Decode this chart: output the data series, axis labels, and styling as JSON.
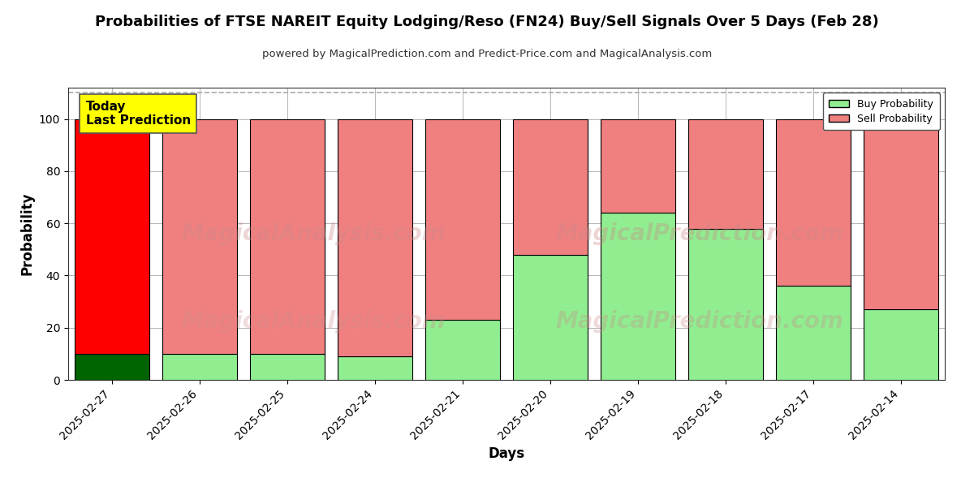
{
  "title": "Probabilities of FTSE NAREIT Equity Lodging/Reso (FN24) Buy/Sell Signals Over 5 Days (Feb 28)",
  "subtitle": "powered by MagicalPrediction.com and Predict-Price.com and MagicalAnalysis.com",
  "xlabel": "Days",
  "ylabel": "Probability",
  "categories": [
    "2025-02-27",
    "2025-02-26",
    "2025-02-25",
    "2025-02-24",
    "2025-02-21",
    "2025-02-20",
    "2025-02-19",
    "2025-02-18",
    "2025-02-17",
    "2025-02-14"
  ],
  "buy_values": [
    10,
    10,
    10,
    9,
    23,
    48,
    64,
    58,
    36,
    27
  ],
  "sell_values": [
    90,
    90,
    90,
    91,
    77,
    52,
    36,
    42,
    64,
    73
  ],
  "buy_color_today": "#006400",
  "sell_color_today": "#FF0000",
  "buy_color_normal": "#90EE90",
  "sell_color_normal": "#F08080",
  "background_color": "#ffffff",
  "grid_color": "#aaaaaa",
  "ylim": [
    0,
    112
  ],
  "yticks": [
    0,
    20,
    40,
    60,
    80,
    100
  ],
  "dashed_line_y": 110,
  "today_label": "Today\nLast Prediction",
  "today_label_bg": "#FFFF00",
  "watermark1": "MagicalAnalysis.com",
  "watermark2": "MagicalPrediction.com",
  "legend_buy_label": "Buy Probability",
  "legend_sell_label": "Sell Probability",
  "bar_edge_color": "#000000",
  "bar_linewidth": 0.8,
  "bar_width": 0.85
}
